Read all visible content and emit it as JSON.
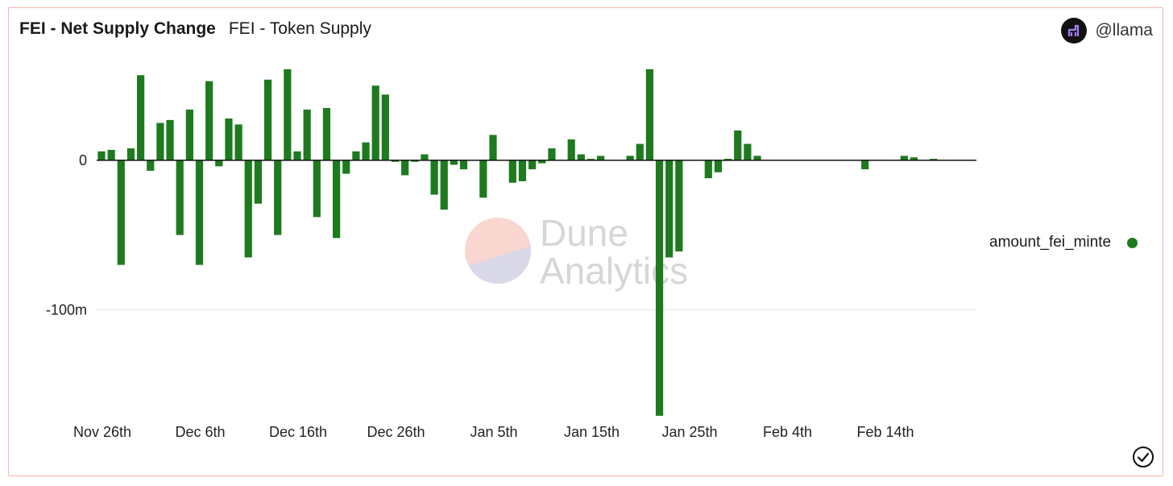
{
  "header": {
    "tabs": [
      {
        "label": "FEI - Net Supply Change",
        "active": true
      },
      {
        "label": "FEI - Token Supply",
        "active": false
      }
    ],
    "user": {
      "name": "@llama",
      "avatar_icon": "llama-avatar-icon"
    }
  },
  "watermark": {
    "line1": "Dune",
    "line2": "Analytics"
  },
  "legend": {
    "label": "amount_fei_minte",
    "color": "#1e7a1e"
  },
  "chart_data": {
    "type": "bar",
    "y_tick_labels": [
      {
        "value": 0,
        "label": "0"
      },
      {
        "value": -100000000,
        "label": "-100m"
      }
    ],
    "ylim": [
      -170000000,
      62000000
    ],
    "x_tick_labels": [
      {
        "day": 0,
        "label": "Nov 26th"
      },
      {
        "day": 10,
        "label": "Dec 6th"
      },
      {
        "day": 20,
        "label": "Dec 16th"
      },
      {
        "day": 30,
        "label": "Dec 26th"
      },
      {
        "day": 40,
        "label": "Jan 5th"
      },
      {
        "day": 50,
        "label": "Jan 15th"
      },
      {
        "day": 60,
        "label": "Jan 25th"
      },
      {
        "day": 70,
        "label": "Feb 4th"
      },
      {
        "day": 80,
        "label": "Feb 14th"
      }
    ],
    "series": [
      {
        "name": "amount_fei_minte",
        "color": "#1e7a1e",
        "x": [
          0,
          1,
          2,
          3,
          4,
          5,
          6,
          7,
          8,
          9,
          10,
          11,
          12,
          13,
          14,
          15,
          16,
          17,
          18,
          19,
          20,
          21,
          22,
          23,
          24,
          25,
          26,
          27,
          28,
          29,
          30,
          31,
          32,
          33,
          34,
          35,
          36,
          37,
          38,
          39,
          40,
          41,
          42,
          43,
          44,
          45,
          46,
          47,
          48,
          49,
          50,
          51,
          52,
          53,
          54,
          55,
          56,
          57,
          58,
          59,
          60,
          61,
          62,
          63,
          64,
          65,
          66,
          67,
          68,
          69,
          70,
          71,
          72,
          73,
          74,
          75,
          76,
          77,
          78,
          79,
          80,
          81,
          82,
          83,
          84,
          85
        ],
        "values": [
          6000000,
          7000000,
          -70000000,
          8000000,
          57000000,
          -7000000,
          25000000,
          27000000,
          -50000000,
          34000000,
          -70000000,
          53000000,
          -4000000,
          28000000,
          24000000,
          -65000000,
          -29000000,
          54000000,
          -50000000,
          61000000,
          6000000,
          34000000,
          -38000000,
          35000000,
          -52000000,
          -9000000,
          6000000,
          12000000,
          50000000,
          44000000,
          -1000000,
          -10000000,
          -1000000,
          4000000,
          -23000000,
          -33000000,
          -3000000,
          -6000000,
          0,
          -25000000,
          17000000,
          0,
          -15000000,
          -14000000,
          -6000000,
          -2000000,
          8000000,
          0,
          14000000,
          4000000,
          1000000,
          3000000,
          0,
          0,
          3000000,
          11000000,
          61000000,
          -171000000,
          -65000000,
          -61000000,
          0,
          0,
          -12000000,
          -8000000,
          1000000,
          20000000,
          11000000,
          3000000,
          0,
          0,
          0,
          0,
          0,
          0,
          0,
          0,
          0,
          0,
          -6000000,
          0,
          0,
          0,
          3000000,
          2000000,
          0,
          1000000
        ]
      }
    ]
  }
}
